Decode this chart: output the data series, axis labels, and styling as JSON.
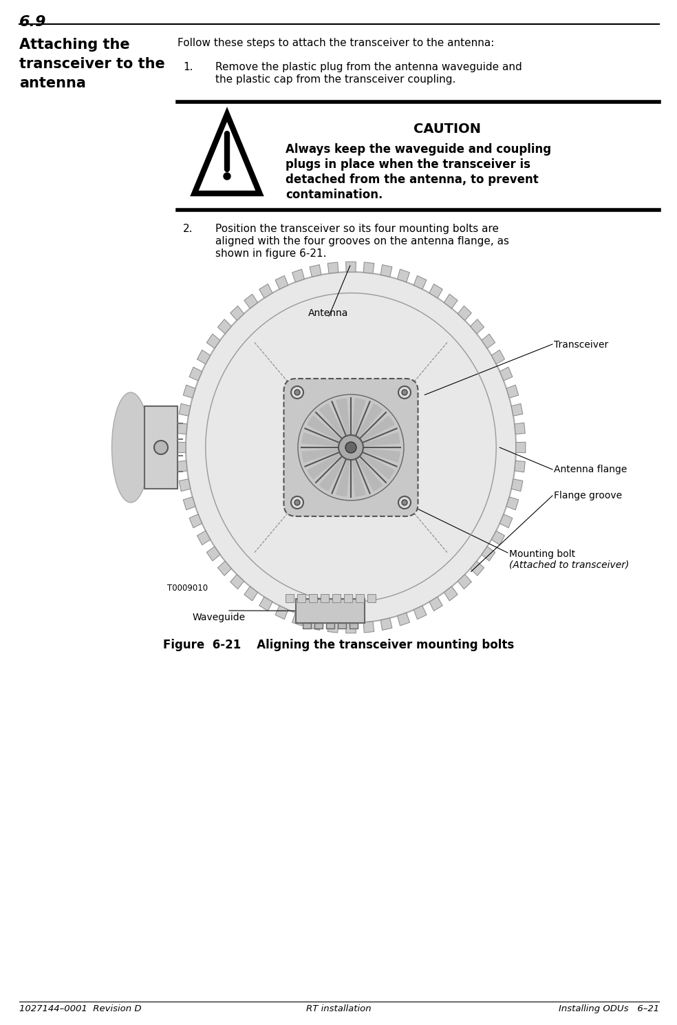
{
  "page_number_top": "6.9",
  "section_title_line1": "Attaching the",
  "section_title_line2": "transceiver to the",
  "section_title_line3": "antenna",
  "intro_text": "Follow these steps to attach the transceiver to the antenna:",
  "step1_num": "1.",
  "step1_text_line1": "Remove the plastic plug from the antenna waveguide and",
  "step1_text_line2": "the plastic cap from the transceiver coupling.",
  "caution_title": "CAUTION",
  "caution_body_line1": "Always keep the waveguide and coupling",
  "caution_body_line2": "plugs in place when the transceiver is",
  "caution_body_line3": "detached from the antenna, to prevent",
  "caution_body_line4": "contamination.",
  "step2_num": "2.",
  "step2_text_line1": "Position the transceiver so its four mounting bolts are",
  "step2_text_line2": "aligned with the four grooves on the antenna flange, as",
  "step2_text_line3": "shown in figure 6-21.",
  "figure_caption": "Figure  6-21    Aligning the transceiver mounting bolts",
  "fig_label_antenna": "Antenna",
  "fig_label_transceiver": "Transceiver",
  "fig_label_antenna_flange": "Antenna flange",
  "fig_label_flange_groove": "Flange groove",
  "fig_label_mounting_bolt": "Mounting bolt",
  "fig_label_mounting_bolt2": "(Attached to transceiver)",
  "fig_label_waveguide": "Waveguide",
  "fig_label_t": "T0009010",
  "footer_left": "1027144–0001  Revision D",
  "footer_center": "RT installation",
  "footer_right": "Installing ODUs   6–21",
  "bg_color": "#ffffff",
  "text_color": "#000000"
}
